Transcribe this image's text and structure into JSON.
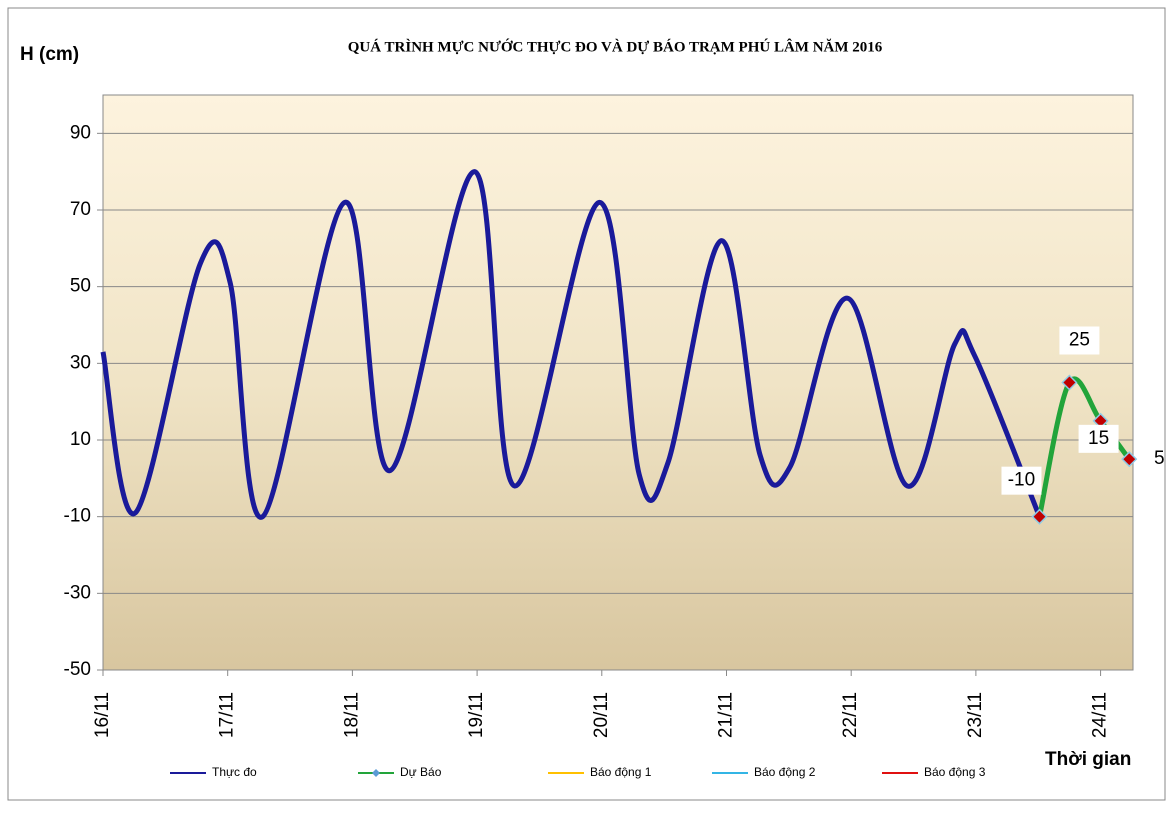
{
  "chart_data": {
    "type": "line",
    "title": "QUÁ TRÌNH MỰC NƯỚC THỰC ĐO VÀ DỰ BÁO TRẠM  PHÚ LÂM NĂM 2016",
    "y_label": "H (cm)",
    "x_label": "Thời gian",
    "xlim": [
      0,
      8.26
    ],
    "xticks": [
      {
        "value": 0,
        "label": "16/11"
      },
      {
        "value": 1,
        "label": "17/11"
      },
      {
        "value": 2,
        "label": "18/11"
      },
      {
        "value": 3,
        "label": "19/11"
      },
      {
        "value": 4,
        "label": "20/11"
      },
      {
        "value": 5,
        "label": "21/11"
      },
      {
        "value": 6,
        "label": "22/11"
      },
      {
        "value": 7,
        "label": "23/11"
      },
      {
        "value": 8,
        "label": "24/11"
      }
    ],
    "ylim": [
      -50,
      100
    ],
    "yticks": [
      -50,
      -30,
      -10,
      10,
      30,
      50,
      70,
      90
    ],
    "grid": true,
    "series": [
      {
        "name": "Thực đo",
        "color": "#1a1a9a",
        "x": [
          0,
          0.26,
          0.78,
          1.02,
          1.28,
          1.94,
          2.3,
          2.98,
          3.3,
          3.98,
          4.3,
          4.53,
          4.96,
          5.27,
          5.51,
          5.97,
          6.45,
          6.83,
          6.99,
          7.51
        ],
        "values": [
          33,
          -9,
          56,
          51,
          -10,
          72,
          2,
          80,
          -2,
          72,
          1,
          4,
          62,
          6,
          3,
          47,
          -2,
          35,
          32,
          -10
        ]
      },
      {
        "name": "Dự Báo",
        "color": "#22a43a",
        "marker": true,
        "x": [
          7.51,
          7.75,
          8.0,
          8.23
        ],
        "values": [
          -10,
          25,
          15,
          5
        ]
      },
      {
        "name": "Báo động 1",
        "color": "#ffc000"
      },
      {
        "name": "Báo động 2",
        "color": "#33b5e5"
      },
      {
        "name": "Báo động 3",
        "color": "#e01010"
      }
    ]
  }
}
